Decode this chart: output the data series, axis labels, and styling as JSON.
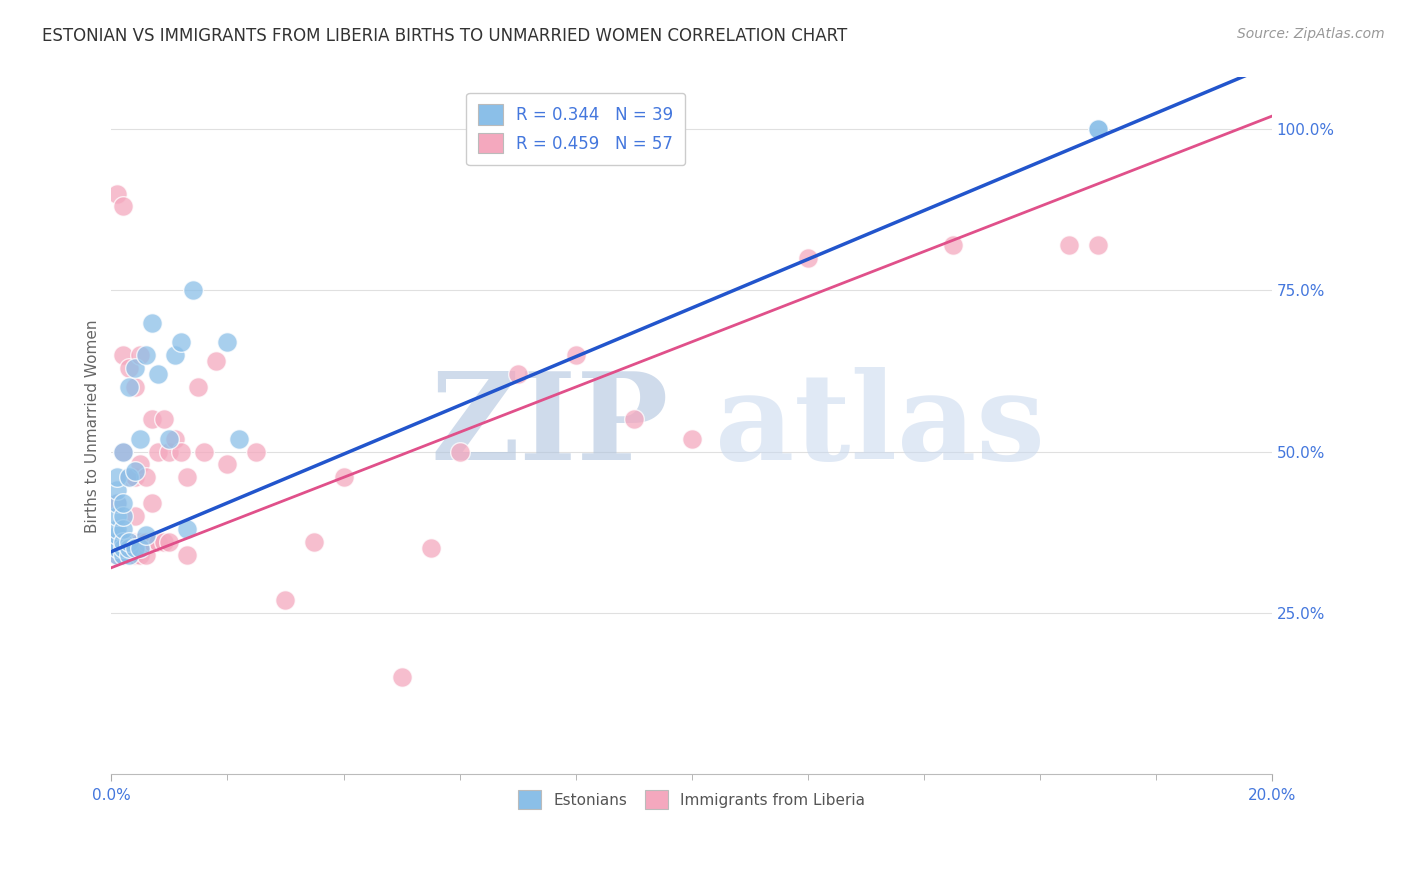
{
  "title": "ESTONIAN VS IMMIGRANTS FROM LIBERIA BIRTHS TO UNMARRIED WOMEN CORRELATION CHART",
  "source": "Source: ZipAtlas.com",
  "ylabel": "Births to Unmarried Women",
  "watermark": "ZIPatlas",
  "legend_entries": [
    {
      "label": "R = 0.344   N = 39",
      "color": "#8bbfe8"
    },
    {
      "label": "R = 0.459   N = 57",
      "color": "#f4a8be"
    }
  ],
  "legend_labels": [
    "Estonians",
    "Immigrants from Liberia"
  ],
  "right_yticks": [
    "25.0%",
    "50.0%",
    "75.0%",
    "100.0%"
  ],
  "right_ytick_vals": [
    0.25,
    0.5,
    0.75,
    1.0
  ],
  "blue_scatter_x": [
    0.001,
    0.001,
    0.001,
    0.001,
    0.001,
    0.001,
    0.001,
    0.001,
    0.001,
    0.002,
    0.002,
    0.002,
    0.002,
    0.002,
    0.002,
    0.002,
    0.003,
    0.003,
    0.003,
    0.003,
    0.003,
    0.004,
    0.004,
    0.004,
    0.005,
    0.005,
    0.006,
    0.006,
    0.007,
    0.008,
    0.01,
    0.011,
    0.012,
    0.013,
    0.014,
    0.02,
    0.022,
    0.17,
    0.17
  ],
  "blue_scatter_y": [
    0.34,
    0.35,
    0.36,
    0.37,
    0.38,
    0.4,
    0.42,
    0.44,
    0.46,
    0.34,
    0.35,
    0.36,
    0.38,
    0.4,
    0.42,
    0.5,
    0.34,
    0.35,
    0.36,
    0.46,
    0.6,
    0.35,
    0.47,
    0.63,
    0.35,
    0.52,
    0.37,
    0.65,
    0.7,
    0.62,
    0.52,
    0.65,
    0.67,
    0.38,
    0.75,
    0.67,
    0.52,
    1.0,
    1.0
  ],
  "pink_scatter_x": [
    0.001,
    0.001,
    0.001,
    0.001,
    0.002,
    0.002,
    0.002,
    0.002,
    0.002,
    0.003,
    0.003,
    0.003,
    0.003,
    0.004,
    0.004,
    0.004,
    0.004,
    0.004,
    0.005,
    0.005,
    0.005,
    0.005,
    0.006,
    0.006,
    0.006,
    0.007,
    0.007,
    0.007,
    0.008,
    0.008,
    0.009,
    0.009,
    0.01,
    0.01,
    0.011,
    0.012,
    0.013,
    0.013,
    0.015,
    0.016,
    0.018,
    0.02,
    0.025,
    0.03,
    0.035,
    0.04,
    0.05,
    0.055,
    0.06,
    0.07,
    0.08,
    0.09,
    0.1,
    0.12,
    0.145,
    0.165,
    0.17
  ],
  "pink_scatter_y": [
    0.34,
    0.36,
    0.42,
    0.9,
    0.34,
    0.36,
    0.5,
    0.65,
    0.88,
    0.34,
    0.36,
    0.46,
    0.63,
    0.34,
    0.36,
    0.4,
    0.46,
    0.6,
    0.34,
    0.36,
    0.48,
    0.65,
    0.34,
    0.36,
    0.46,
    0.36,
    0.42,
    0.55,
    0.36,
    0.5,
    0.36,
    0.55,
    0.36,
    0.5,
    0.52,
    0.5,
    0.34,
    0.46,
    0.6,
    0.5,
    0.64,
    0.48,
    0.5,
    0.27,
    0.36,
    0.46,
    0.15,
    0.35,
    0.5,
    0.62,
    0.65,
    0.55,
    0.52,
    0.8,
    0.82,
    0.82,
    0.82
  ],
  "blue_line_x0": 0.0,
  "blue_line_x1": 0.2,
  "blue_line_y0": 0.345,
  "blue_line_y1": 1.1,
  "pink_line_x0": 0.0,
  "pink_line_x1": 0.2,
  "pink_line_y0": 0.32,
  "pink_line_y1": 1.02,
  "xmin": 0.0,
  "xmax": 0.2,
  "ymin": 0.0,
  "ymax": 1.08,
  "blue_color": "#8bbfe8",
  "pink_color": "#f4a8be",
  "blue_line_color": "#2255cc",
  "pink_line_color": "#e0508a",
  "title_color": "#333333",
  "axis_label_color": "#4477dd",
  "grid_color": "#e0e0e0",
  "watermark_color": "#ccd8ee",
  "title_fontsize": 12,
  "source_fontsize": 10,
  "tick_fontsize": 11
}
